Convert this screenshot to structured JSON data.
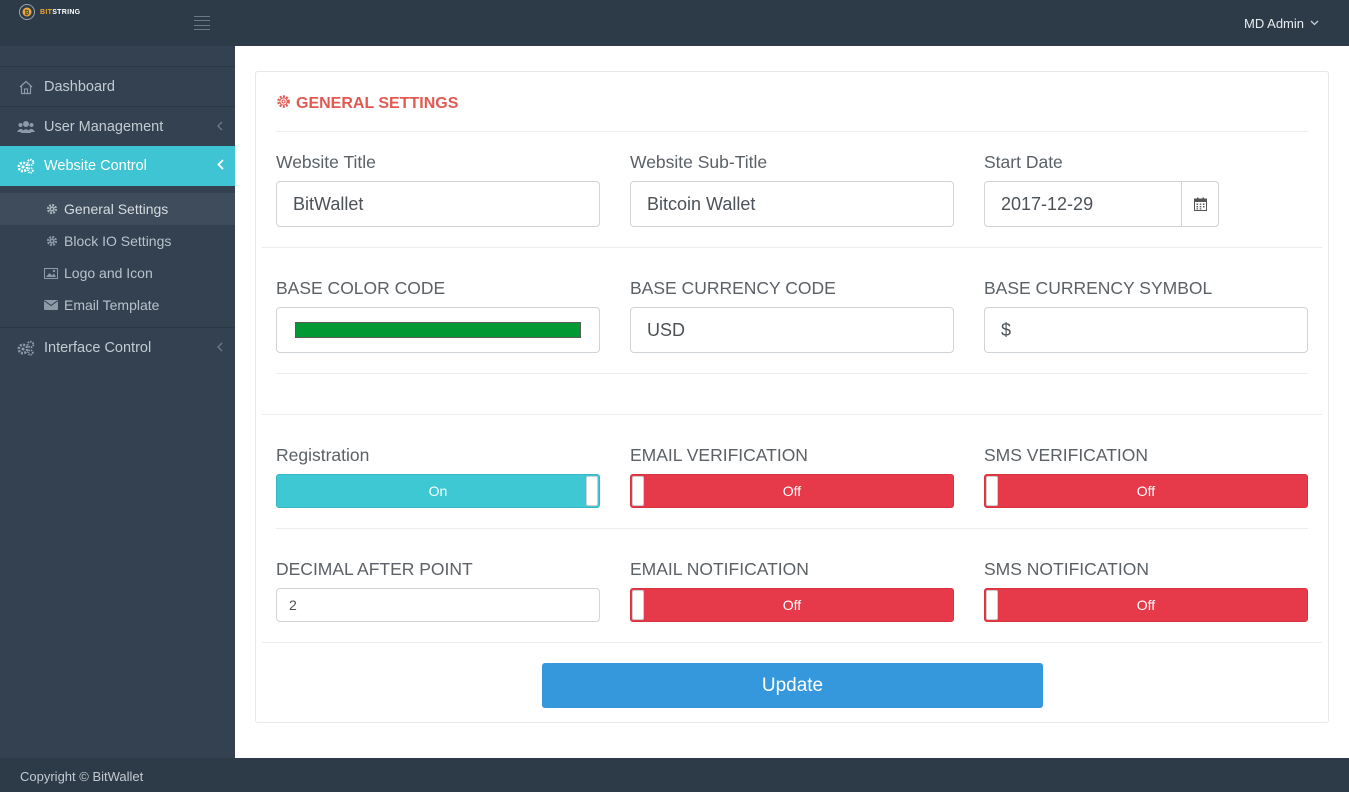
{
  "app": {
    "brand_prefix": "BIT",
    "brand_suffix": "STRING",
    "user_name": "MD Admin",
    "footer": "Copyright © BitWallet"
  },
  "sidebar": {
    "items": [
      {
        "label": "Dashboard",
        "icon": "home-icon"
      },
      {
        "label": "User Management",
        "icon": "users-icon"
      },
      {
        "label": "Website Control",
        "icon": "cogs-icon",
        "active": true
      },
      {
        "label": "Interface Control",
        "icon": "cogs-icon"
      }
    ],
    "subitems": [
      {
        "label": "General Settings",
        "icon": "gear-icon",
        "current": true
      },
      {
        "label": "Block IO Settings",
        "icon": "gear-icon"
      },
      {
        "label": "Logo and Icon",
        "icon": "image-icon"
      },
      {
        "label": "Email Template",
        "icon": "envelope-icon"
      }
    ]
  },
  "settings": {
    "title": "GENERAL SETTINGS",
    "website_title": {
      "label": "Website Title",
      "value": "BitWallet"
    },
    "website_subtitle": {
      "label": "Website Sub-Title",
      "value": "Bitcoin Wallet"
    },
    "start_date": {
      "label": "Start Date",
      "value": "2017-12-29"
    },
    "base_color": {
      "label": "BASE COLOR CODE",
      "color": "#009933"
    },
    "base_currency_code": {
      "label": "BASE CURRENCY CODE",
      "value": "USD"
    },
    "base_currency_symbol": {
      "label": "BASE CURRENCY SYMBOL",
      "value": "$"
    },
    "registration": {
      "label": "Registration",
      "state": "On"
    },
    "email_verification": {
      "label": "EMAIL VERIFICATION",
      "state": "Off"
    },
    "sms_verification": {
      "label": "SMS VERIFICATION",
      "state": "Off"
    },
    "decimal_after_point": {
      "label": "DECIMAL AFTER POINT",
      "value": "2"
    },
    "email_notification": {
      "label": "EMAIL NOTIFICATION",
      "state": "Off"
    },
    "sms_notification": {
      "label": "SMS NOTIFICATION",
      "state": "Off"
    },
    "update_label": "Update"
  },
  "colors": {
    "accent": "#3ec4d2",
    "danger": "#e63a4a",
    "primary": "#3598dc",
    "title": "#e05a52"
  }
}
